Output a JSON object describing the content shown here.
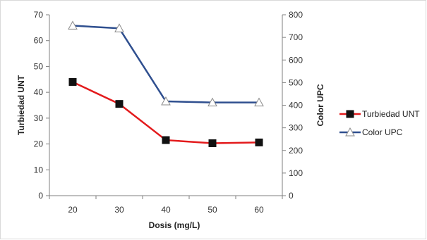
{
  "chart_data": {
    "type": "line",
    "x": [
      20,
      30,
      40,
      50,
      60
    ],
    "xlabel": "Dosis (mg/L)",
    "ylabel_left": "Turbiedad UNT",
    "ylabel_right": "Color UPC",
    "ylim_left": [
      0,
      70
    ],
    "yticks_left": [
      0,
      10,
      20,
      30,
      40,
      50,
      60,
      70
    ],
    "ylim_right": [
      0,
      800
    ],
    "yticks_right": [
      0,
      100,
      200,
      300,
      400,
      500,
      600,
      700,
      800
    ],
    "grid": false,
    "legend_position": "right",
    "series": [
      {
        "name": "Turbiedad UNT",
        "axis": "left",
        "values": [
          44,
          35.5,
          21.5,
          20.3,
          20.6
        ],
        "color": "#e31a1c",
        "marker": "filled-square"
      },
      {
        "name": "Color UPC",
        "axis": "right",
        "values": [
          752,
          740,
          417,
          412,
          412
        ],
        "color": "#2f4f8f",
        "marker": "hollow-triangle"
      }
    ]
  }
}
